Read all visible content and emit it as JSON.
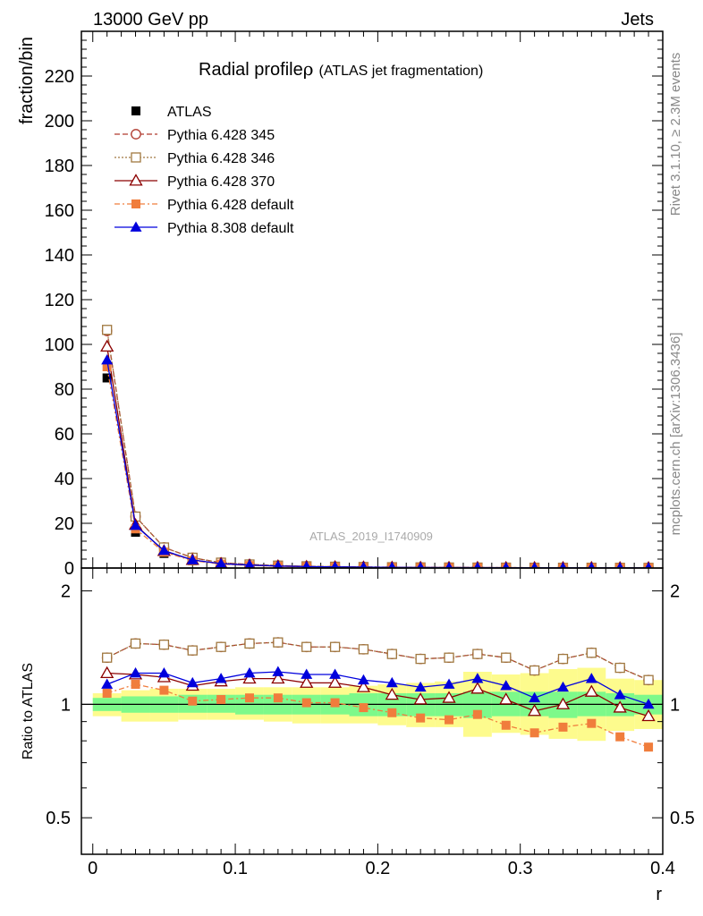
{
  "header": {
    "left": "13000 GeV pp",
    "right": "Jets"
  },
  "side_labels": {
    "rivet": "Rivet 3.1.10, ≥ 2.3M events",
    "mcplots": "mcplots.cern.ch [arXiv:1306.3436]"
  },
  "watermark": "ATLAS_2019_I1740909",
  "chart_data": [
    {
      "type": "line",
      "title": "Radial profileρ (ATLAS jet fragmentation)",
      "title_main": "Radial profile",
      "title_symbol": "ρ",
      "title_sub": "(ATLAS jet fragmentation)",
      "xlabel": "r",
      "ylabel": "fraction/bin",
      "xlim": [
        -0.008,
        0.4
      ],
      "ylim": [
        0,
        240
      ],
      "x_ticks": [
        0,
        0.1,
        0.2,
        0.3,
        0.4
      ],
      "x_tick_labels": [
        "0",
        "0.1",
        "0.2",
        "0.3",
        "0.4"
      ],
      "y_ticks": [
        0,
        20,
        40,
        60,
        80,
        100,
        120,
        140,
        160,
        180,
        200,
        220
      ],
      "y_tick_labels": [
        "0",
        "20",
        "40",
        "60",
        "80",
        "100",
        "120",
        "140",
        "160",
        "180",
        "200",
        "220"
      ],
      "legend_position": "top-left",
      "x": [
        0.01,
        0.03,
        0.05,
        0.07,
        0.09,
        0.11,
        0.13,
        0.15,
        0.17,
        0.19,
        0.21,
        0.23,
        0.25,
        0.27,
        0.29,
        0.31,
        0.33,
        0.35,
        0.37,
        0.39
      ],
      "series": [
        {
          "name": "ATLAS",
          "color": "#000000",
          "marker": "square-filled",
          "dash": "none",
          "values": [
            85,
            16,
            6.5,
            3.2,
            1.7,
            1.1,
            0.75,
            0.55,
            0.42,
            0.33,
            0.27,
            0.22,
            0.19,
            0.16,
            0.14,
            0.12,
            0.11,
            0.1,
            0.09,
            0.08
          ]
        },
        {
          "name": "Pythia 6.428 345",
          "color": "#b03a2e",
          "marker": "circle-open",
          "dash": "6,3",
          "values": [
            106,
            23,
            9.2,
            4.6,
            2.4,
            1.6,
            1.1,
            0.78,
            0.6,
            0.46,
            0.37,
            0.29,
            0.25,
            0.22,
            0.19,
            0.15,
            0.14,
            0.14,
            0.11,
            0.09
          ]
        },
        {
          "name": "Pythia 6.428 346",
          "color": "#a07840",
          "marker": "square-open",
          "dash": "2,2",
          "values": [
            106.5,
            23,
            9.2,
            4.6,
            2.4,
            1.6,
            1.1,
            0.79,
            0.6,
            0.46,
            0.37,
            0.29,
            0.25,
            0.22,
            0.19,
            0.15,
            0.14,
            0.14,
            0.11,
            0.09
          ]
        },
        {
          "name": "Pythia 6.428 370",
          "color": "#8b0000",
          "marker": "triangle-open",
          "dash": "none",
          "values": [
            99,
            19.3,
            7.6,
            3.6,
            1.95,
            1.28,
            0.87,
            0.62,
            0.48,
            0.37,
            0.29,
            0.23,
            0.2,
            0.175,
            0.145,
            0.115,
            0.11,
            0.108,
            0.088,
            0.075
          ]
        },
        {
          "name": "Pythia 6.428 default",
          "color": "#f07d3c",
          "marker": "square-filled",
          "dash": "6,3,2,3",
          "values": [
            90,
            17.5,
            7.1,
            3.3,
            1.75,
            1.14,
            0.78,
            0.56,
            0.42,
            0.32,
            0.26,
            0.2,
            0.17,
            0.14,
            0.12,
            0.1,
            0.095,
            0.09,
            0.075,
            0.063
          ]
        },
        {
          "name": "Pythia 8.308 default",
          "color": "#0000dd",
          "marker": "triangle-filled",
          "dash": "none",
          "values": [
            93,
            19,
            7.8,
            3.6,
            1.95,
            1.33,
            0.91,
            0.65,
            0.5,
            0.38,
            0.31,
            0.24,
            0.21,
            0.18,
            0.155,
            0.125,
            0.12,
            0.115,
            0.094,
            0.08
          ]
        }
      ]
    },
    {
      "type": "line",
      "xlabel": "r",
      "ylabel": "Ratio to ATLAS",
      "ylim": [
        0.4,
        2.3
      ],
      "y_scale": "log",
      "y_ticks": [
        0.5,
        1,
        2
      ],
      "y_tick_labels": [
        "0.5",
        "1",
        "2"
      ],
      "reference_line": 1,
      "bands": [
        {
          "name": "inner",
          "color": "#7df98a",
          "lo": [
            0.96,
            0.95,
            0.95,
            0.95,
            0.95,
            0.94,
            0.94,
            0.94,
            0.94,
            0.93,
            0.93,
            0.93,
            0.93,
            0.92,
            0.93,
            0.93,
            0.92,
            0.93,
            0.93,
            0.94
          ],
          "hi": [
            1.04,
            1.05,
            1.05,
            1.06,
            1.06,
            1.06,
            1.06,
            1.06,
            1.06,
            1.07,
            1.07,
            1.07,
            1.07,
            1.08,
            1.08,
            1.08,
            1.08,
            1.08,
            1.07,
            1.06
          ]
        },
        {
          "name": "outer",
          "color": "#fdfb8d",
          "lo": [
            0.93,
            0.9,
            0.9,
            0.91,
            0.91,
            0.91,
            0.9,
            0.89,
            0.89,
            0.89,
            0.88,
            0.87,
            0.87,
            0.82,
            0.84,
            0.83,
            0.81,
            0.8,
            0.85,
            0.86
          ],
          "hi": [
            1.07,
            1.09,
            1.1,
            1.1,
            1.1,
            1.11,
            1.11,
            1.11,
            1.11,
            1.12,
            1.13,
            1.14,
            1.15,
            1.22,
            1.2,
            1.21,
            1.24,
            1.25,
            1.17,
            1.16
          ]
        }
      ],
      "series": [
        {
          "name": "Pythia 6.428 345",
          "values": [
            1.33,
            1.45,
            1.44,
            1.39,
            1.42,
            1.45,
            1.46,
            1.42,
            1.42,
            1.4,
            1.36,
            1.32,
            1.33,
            1.36,
            1.33,
            1.23,
            1.32,
            1.37,
            1.25,
            1.16
          ]
        },
        {
          "name": "Pythia 6.428 346",
          "values": [
            1.33,
            1.45,
            1.44,
            1.39,
            1.42,
            1.45,
            1.46,
            1.42,
            1.42,
            1.4,
            1.36,
            1.32,
            1.33,
            1.36,
            1.33,
            1.23,
            1.32,
            1.37,
            1.25,
            1.16
          ]
        },
        {
          "name": "Pythia 6.428 370",
          "values": [
            1.21,
            1.2,
            1.18,
            1.12,
            1.15,
            1.17,
            1.17,
            1.14,
            1.14,
            1.11,
            1.06,
            1.03,
            1.04,
            1.1,
            1.03,
            0.96,
            1.0,
            1.08,
            0.98,
            0.93
          ]
        },
        {
          "name": "Pythia 6.428 default",
          "values": [
            1.07,
            1.13,
            1.09,
            1.02,
            1.03,
            1.04,
            1.04,
            1.01,
            1.01,
            0.98,
            0.95,
            0.92,
            0.91,
            0.94,
            0.88,
            0.84,
            0.87,
            0.89,
            0.82,
            0.77
          ]
        },
        {
          "name": "Pythia 8.308 default",
          "values": [
            1.13,
            1.21,
            1.21,
            1.14,
            1.17,
            1.21,
            1.22,
            1.2,
            1.2,
            1.16,
            1.14,
            1.11,
            1.13,
            1.17,
            1.12,
            1.04,
            1.11,
            1.17,
            1.06,
            1.0
          ]
        }
      ]
    }
  ]
}
